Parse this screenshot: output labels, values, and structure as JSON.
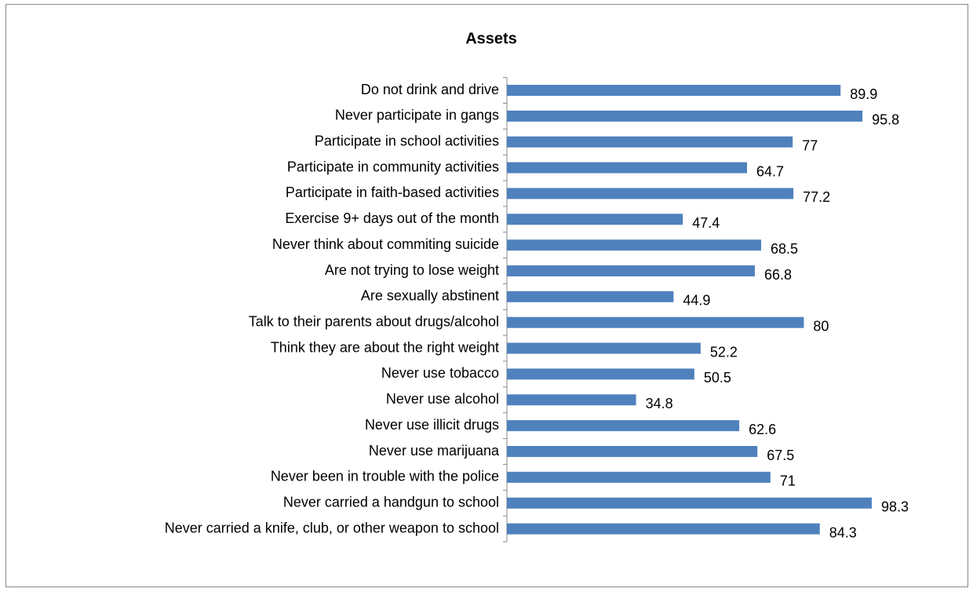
{
  "chart_data": {
    "type": "barh",
    "title": "Assets",
    "categories": [
      "Do not drink and drive",
      "Never participate in gangs",
      "Participate in school activities",
      "Participate in community activities",
      "Participate in faith-based activities",
      "Exercise 9+ days out of the month",
      "Never think about commiting suicide",
      "Are not trying to lose weight",
      "Are sexually abstinent",
      "Talk to their parents about drugs/alcohol",
      "Think they are about the right weight",
      "Never use tobacco",
      "Never use alcohol",
      "Never use illicit drugs",
      "Never use marijuana",
      "Never been in trouble with the police",
      "Never carried a handgun to school",
      "Never carried a knife, club, or other weapon to school"
    ],
    "values": [
      89.9,
      95.8,
      77,
      64.7,
      77.2,
      47.4,
      68.5,
      66.8,
      44.9,
      80,
      52.2,
      50.5,
      34.8,
      62.6,
      67.5,
      71,
      98.3,
      84.3
    ],
    "color": "#4f81bd",
    "xlim": [
      0,
      100
    ]
  }
}
